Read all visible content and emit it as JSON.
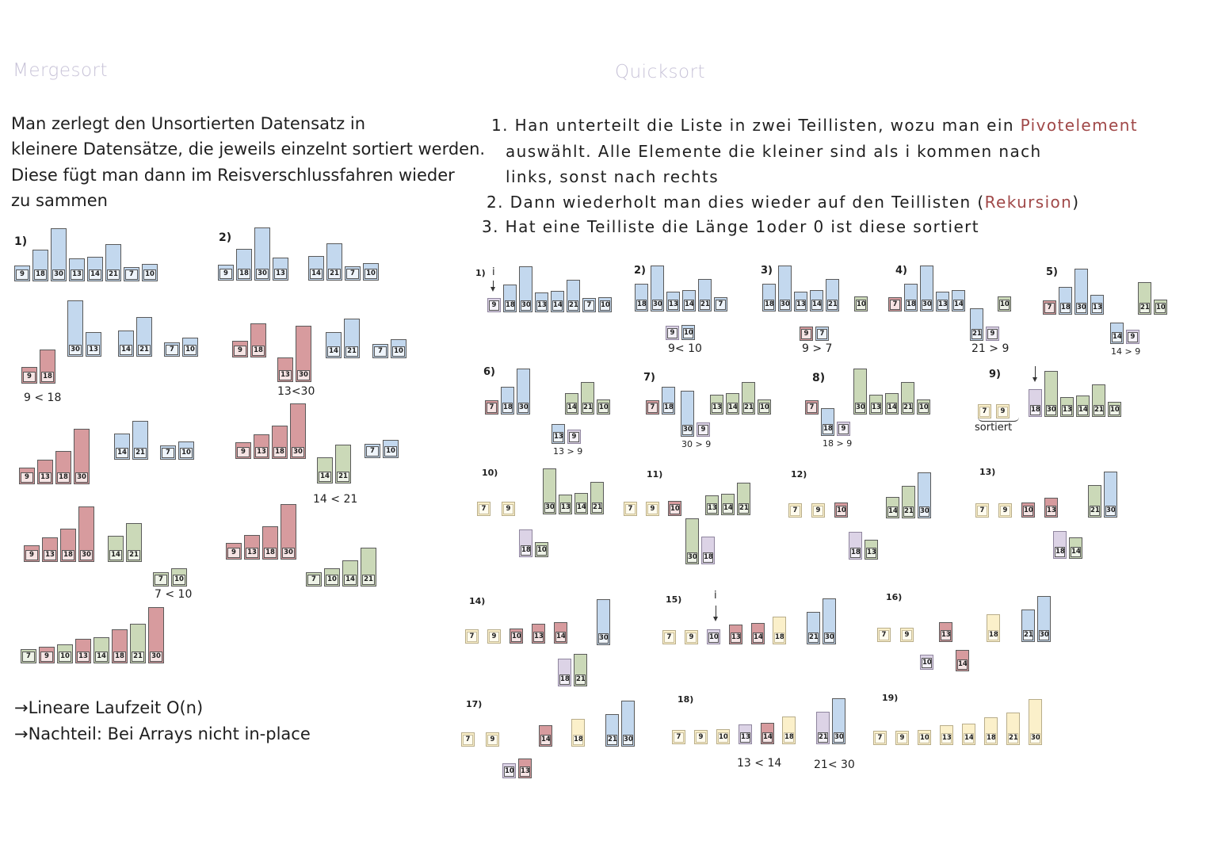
{
  "mergesort": {
    "title": "Mergesort",
    "lines": [
      "Man zerlegt den Unsortierten Datensatz in",
      "kleinere Datensätze, die jeweils einzelnt sortiert werden.",
      "Diese fügt man dann im Reisverschlussfahren wieder",
      "zu sammen"
    ],
    "step_labels": [
      "1)",
      "2)"
    ],
    "comparisons": [
      "9 < 18",
      "13<30",
      "14 < 21",
      "7 < 10"
    ],
    "notes": [
      "→Lineare Laufzeit O(n)",
      "→Nachteil: Bei Arrays nicht in-place"
    ]
  },
  "quicksort": {
    "title": "Quicksort",
    "line1": {
      "prefix": "1. Han unterteilt die Liste in zwei Teillisten, wozu man ein ",
      "highlight": "Pivotelement"
    },
    "line2": "auswählt. Alle Elemente die kleiner sind als i kommen nach",
    "line3": "links, sonst nach rechts",
    "line4": {
      "prefix": "2. Dann wiederholt man dies wieder auf den Teillisten (",
      "highlight": "Rekursion",
      "suffix": ")"
    },
    "line5": "3. Hat eine Teilliste die Länge 1oder 0 ist diese sortiert",
    "pointer_label": "i",
    "sorted_label": "sortiert",
    "step_labels": [
      "1)",
      "2)",
      "3)",
      "4)",
      "5)",
      "6)",
      "7)",
      "8)",
      "9)",
      "10)",
      "11)",
      "12)",
      "13)",
      "14)",
      "15)",
      "16)",
      "17)",
      "18)",
      "19)"
    ],
    "comparisons": [
      "9< 10",
      "9 > 7",
      "21 > 9",
      "14 > 9",
      "13 > 9",
      "30 > 9",
      "18 > 9",
      "13 < 14",
      "21< 30"
    ]
  },
  "palette": {
    "blue": "#c3d8ee",
    "red": "#d79b9e",
    "green": "#cbd9b8",
    "yellow": "#fbf0ca",
    "purple": "#dcd3e6",
    "title": "#c8c3d8",
    "accent": "#a04848"
  },
  "groups": [
    {
      "name": "ms-1",
      "bars": [
        [
          "b",
          9
        ],
        [
          "b",
          18
        ],
        [
          "b",
          30
        ],
        [
          "b",
          13
        ],
        [
          "b",
          14
        ],
        [
          "b",
          21
        ],
        [
          "b",
          7
        ],
        [
          "b",
          10
        ]
      ]
    },
    {
      "name": "ms-2a",
      "bars": [
        [
          "b",
          9
        ],
        [
          "b",
          18
        ],
        [
          "b",
          30
        ],
        [
          "b",
          13
        ]
      ]
    },
    {
      "name": "ms-2b",
      "bars": [
        [
          "b",
          14
        ],
        [
          "b",
          21
        ],
        [
          "b",
          7
        ],
        [
          "b",
          10
        ]
      ]
    },
    {
      "name": "ms-3a",
      "bars": [
        [
          "r",
          9
        ],
        [
          "r",
          18
        ]
      ]
    },
    {
      "name": "ms-3b",
      "bars": [
        [
          "b",
          30
        ],
        [
          "b",
          13
        ]
      ]
    },
    {
      "name": "ms-3c",
      "bars": [
        [
          "b",
          14
        ],
        [
          "b",
          21
        ]
      ]
    },
    {
      "name": "ms-3d",
      "bars": [
        [
          "b",
          7
        ],
        [
          "b",
          10
        ]
      ]
    },
    {
      "name": "ms-4a",
      "bars": [
        [
          "r",
          9
        ],
        [
          "r",
          18
        ]
      ]
    },
    {
      "name": "ms-4b",
      "bars": [
        [
          "r",
          13
        ],
        [
          "r",
          30
        ]
      ]
    },
    {
      "name": "ms-4c",
      "bars": [
        [
          "b",
          14
        ],
        [
          "b",
          21
        ]
      ]
    },
    {
      "name": "ms-4d",
      "bars": [
        [
          "b",
          7
        ],
        [
          "b",
          10
        ]
      ]
    },
    {
      "name": "ms-5a",
      "bars": [
        [
          "r",
          9
        ],
        [
          "r",
          13
        ],
        [
          "r",
          18
        ],
        [
          "r",
          30
        ]
      ]
    },
    {
      "name": "ms-5b",
      "bars": [
        [
          "b",
          14
        ],
        [
          "b",
          21
        ]
      ]
    },
    {
      "name": "ms-5c",
      "bars": [
        [
          "b",
          7
        ],
        [
          "b",
          10
        ]
      ]
    },
    {
      "name": "ms-6a",
      "bars": [
        [
          "r",
          9
        ],
        [
          "r",
          13
        ],
        [
          "r",
          18
        ],
        [
          "r",
          30
        ]
      ]
    },
    {
      "name": "ms-6b",
      "bars": [
        [
          "g",
          14
        ],
        [
          "g",
          21
        ]
      ]
    },
    {
      "name": "ms-6c",
      "bars": [
        [
          "b",
          7
        ],
        [
          "b",
          10
        ]
      ]
    },
    {
      "name": "ms-7a",
      "bars": [
        [
          "r",
          9
        ],
        [
          "r",
          13
        ],
        [
          "r",
          18
        ],
        [
          "r",
          30
        ]
      ]
    },
    {
      "name": "ms-7b",
      "bars": [
        [
          "g",
          14
        ],
        [
          "g",
          21
        ]
      ]
    },
    {
      "name": "ms-7c",
      "bars": [
        [
          "g",
          7
        ],
        [
          "g",
          10
        ]
      ]
    },
    {
      "name": "ms-8a",
      "bars": [
        [
          "r",
          9
        ],
        [
          "r",
          13
        ],
        [
          "r",
          18
        ],
        [
          "r",
          30
        ]
      ]
    },
    {
      "name": "ms-8b",
      "bars": [
        [
          "g",
          7
        ],
        [
          "g",
          10
        ],
        [
          "g",
          14
        ],
        [
          "g",
          21
        ]
      ]
    },
    {
      "name": "ms-9",
      "bars": [
        [
          "g",
          7
        ],
        [
          "r",
          9
        ],
        [
          "g",
          10
        ],
        [
          "r",
          13
        ],
        [
          "g",
          14
        ],
        [
          "r",
          18
        ],
        [
          "g",
          21
        ],
        [
          "r",
          30
        ]
      ]
    },
    {
      "name": "qs-1",
      "bars": [
        [
          "p",
          9
        ],
        [
          "b",
          18
        ],
        [
          "b",
          30
        ],
        [
          "b",
          13
        ],
        [
          "b",
          14
        ],
        [
          "b",
          21
        ],
        [
          "b",
          7
        ],
        [
          "b",
          10
        ]
      ]
    },
    {
      "name": "qs-2a",
      "bars": [
        [
          "b",
          18
        ],
        [
          "b",
          30
        ],
        [
          "b",
          13
        ],
        [
          "b",
          14
        ],
        [
          "b",
          21
        ],
        [
          "b",
          7
        ]
      ]
    },
    {
      "name": "qs-2b",
      "bars": [
        [
          "p",
          9
        ],
        [
          "b",
          10
        ]
      ]
    },
    {
      "name": "qs-3a",
      "bars": [
        [
          "b",
          18
        ],
        [
          "b",
          30
        ],
        [
          "b",
          13
        ],
        [
          "b",
          14
        ],
        [
          "b",
          21
        ]
      ]
    },
    {
      "name": "qs-3b",
      "bars": [
        [
          "g",
          10
        ]
      ]
    },
    {
      "name": "qs-3c",
      "bars": [
        [
          "r",
          9
        ],
        [
          "b",
          7
        ]
      ]
    },
    {
      "name": "qs-4a",
      "bars": [
        [
          "r",
          7
        ],
        [
          "b",
          18
        ],
        [
          "b",
          30
        ],
        [
          "b",
          13
        ],
        [
          "b",
          14
        ]
      ]
    },
    {
      "name": "qs-4b",
      "bars": [
        [
          "g",
          10
        ]
      ]
    },
    {
      "name": "qs-4c",
      "bars": [
        [
          "b",
          21
        ],
        [
          "p",
          9
        ]
      ]
    },
    {
      "name": "qs-5a",
      "bars": [
        [
          "r",
          7
        ],
        [
          "b",
          18
        ],
        [
          "b",
          30
        ],
        [
          "b",
          13
        ]
      ]
    },
    {
      "name": "qs-5b",
      "bars": [
        [
          "g",
          21
        ],
        [
          "g",
          10
        ]
      ]
    },
    {
      "name": "qs-5c",
      "bars": [
        [
          "b",
          14
        ],
        [
          "p",
          9
        ]
      ]
    },
    {
      "name": "qs-6a",
      "bars": [
        [
          "r",
          7
        ],
        [
          "b",
          18
        ],
        [
          "b",
          30
        ]
      ]
    },
    {
      "name": "qs-6b",
      "bars": [
        [
          "g",
          14
        ],
        [
          "g",
          21
        ],
        [
          "g",
          10
        ]
      ]
    },
    {
      "name": "qs-6c",
      "bars": [
        [
          "b",
          13
        ],
        [
          "p",
          9
        ]
      ]
    },
    {
      "name": "qs-7a",
      "bars": [
        [
          "r",
          7
        ],
        [
          "b",
          18
        ]
      ]
    },
    {
      "name": "qs-7b",
      "bars": [
        [
          "b",
          30
        ],
        [
          "p",
          9
        ]
      ]
    },
    {
      "name": "qs-7c",
      "bars": [
        [
          "g",
          13
        ],
        [
          "g",
          14
        ],
        [
          "g",
          21
        ],
        [
          "g",
          10
        ]
      ]
    },
    {
      "name": "qs-8a",
      "bars": [
        [
          "r",
          7
        ]
      ]
    },
    {
      "name": "qs-8b",
      "bars": [
        [
          "b",
          18
        ],
        [
          "p",
          9
        ]
      ]
    },
    {
      "name": "qs-8c",
      "bars": [
        [
          "g",
          30
        ],
        [
          "g",
          13
        ],
        [
          "g",
          14
        ],
        [
          "g",
          21
        ],
        [
          "g",
          10
        ]
      ]
    },
    {
      "name": "qs-9a",
      "bars": [
        [
          "y",
          7
        ],
        [
          "y",
          9
        ]
      ]
    },
    {
      "name": "qs-9b",
      "bars": [
        [
          "p",
          18
        ],
        [
          "g",
          30
        ],
        [
          "g",
          13
        ],
        [
          "g",
          14
        ],
        [
          "g",
          21
        ],
        [
          "g",
          10
        ]
      ]
    },
    {
      "name": "qs-10a",
      "bars": [
        [
          "y",
          7
        ],
        [
          "y",
          9
        ]
      ]
    },
    {
      "name": "qs-10b",
      "bars": [
        [
          "g",
          30
        ],
        [
          "g",
          13
        ],
        [
          "g",
          14
        ],
        [
          "g",
          21
        ]
      ]
    },
    {
      "name": "qs-10c",
      "bars": [
        [
          "p",
          18
        ],
        [
          "g",
          10
        ]
      ]
    },
    {
      "name": "qs-11a",
      "bars": [
        [
          "y",
          7
        ],
        [
          "y",
          9
        ],
        [
          "r",
          10
        ]
      ]
    },
    {
      "name": "qs-11b",
      "bars": [
        [
          "g",
          13
        ],
        [
          "g",
          14
        ],
        [
          "g",
          21
        ]
      ]
    },
    {
      "name": "qs-11c",
      "bars": [
        [
          "g",
          30
        ],
        [
          "p",
          18
        ]
      ]
    },
    {
      "name": "qs-12a",
      "bars": [
        [
          "y",
          7
        ],
        [
          "y",
          9
        ],
        [
          "r",
          10
        ]
      ]
    },
    {
      "name": "qs-12b",
      "bars": [
        [
          "g",
          14
        ],
        [
          "g",
          21
        ],
        [
          "b",
          30
        ]
      ]
    },
    {
      "name": "qs-12c",
      "bars": [
        [
          "p",
          18
        ],
        [
          "g",
          13
        ]
      ]
    },
    {
      "name": "qs-13a",
      "bars": [
        [
          "y",
          7
        ],
        [
          "y",
          9
        ],
        [
          "r",
          10
        ],
        [
          "r",
          13
        ]
      ]
    },
    {
      "name": "qs-13b",
      "bars": [
        [
          "g",
          21
        ],
        [
          "b",
          30
        ]
      ]
    },
    {
      "name": "qs-13c",
      "bars": [
        [
          "p",
          18
        ],
        [
          "g",
          14
        ]
      ]
    },
    {
      "name": "qs-14a",
      "bars": [
        [
          "y",
          7
        ],
        [
          "y",
          9
        ],
        [
          "r",
          10
        ],
        [
          "r",
          13
        ],
        [
          "r",
          14
        ]
      ]
    },
    {
      "name": "qs-14b",
      "bars": [
        [
          "b",
          30
        ]
      ]
    },
    {
      "name": "qs-14c",
      "bars": [
        [
          "p",
          18
        ],
        [
          "g",
          21
        ]
      ]
    },
    {
      "name": "qs-15a",
      "bars": [
        [
          "y",
          7
        ],
        [
          "y",
          9
        ],
        [
          "p",
          10
        ],
        [
          "r",
          13
        ],
        [
          "r",
          14
        ]
      ]
    },
    {
      "name": "qs-15b",
      "bars": [
        [
          "y",
          18
        ]
      ]
    },
    {
      "name": "qs-15c",
      "bars": [
        [
          "b",
          21
        ],
        [
          "b",
          30
        ]
      ]
    },
    {
      "name": "qs-16a",
      "bars": [
        [
          "y",
          7
        ],
        [
          "y",
          9
        ]
      ]
    },
    {
      "name": "qs-16b",
      "bars": [
        [
          "r",
          13
        ]
      ]
    },
    {
      "name": "qs-16c",
      "bars": [
        [
          "p",
          10
        ]
      ]
    },
    {
      "name": "qs-16d",
      "bars": [
        [
          "r",
          14
        ]
      ]
    },
    {
      "name": "qs-16e",
      "bars": [
        [
          "y",
          18
        ]
      ]
    },
    {
      "name": "qs-16f",
      "bars": [
        [
          "b",
          21
        ],
        [
          "b",
          30
        ]
      ]
    },
    {
      "name": "qs-17a",
      "bars": [
        [
          "y",
          7
        ],
        [
          "y",
          9
        ]
      ]
    },
    {
      "name": "qs-17b",
      "bars": [
        [
          "r",
          14
        ]
      ]
    },
    {
      "name": "qs-17c",
      "bars": [
        [
          "y",
          18
        ]
      ]
    },
    {
      "name": "qs-17d",
      "bars": [
        [
          "b",
          21
        ],
        [
          "b",
          30
        ]
      ]
    },
    {
      "name": "qs-17e",
      "bars": [
        [
          "p",
          10
        ],
        [
          "r",
          13
        ]
      ]
    },
    {
      "name": "qs-18a",
      "bars": [
        [
          "y",
          7
        ],
        [
          "y",
          9
        ],
        [
          "y",
          10
        ],
        [
          "p",
          13
        ],
        [
          "r",
          14
        ]
      ]
    },
    {
      "name": "qs-18b",
      "bars": [
        [
          "y",
          18
        ]
      ]
    },
    {
      "name": "qs-18c",
      "bars": [
        [
          "p",
          21
        ],
        [
          "b",
          30
        ]
      ]
    },
    {
      "name": "qs-19",
      "bars": [
        [
          "y",
          7
        ],
        [
          "y",
          9
        ],
        [
          "y",
          10
        ],
        [
          "y",
          13
        ],
        [
          "y",
          14
        ],
        [
          "y",
          18
        ],
        [
          "y",
          21
        ],
        [
          "y",
          30
        ]
      ]
    }
  ]
}
